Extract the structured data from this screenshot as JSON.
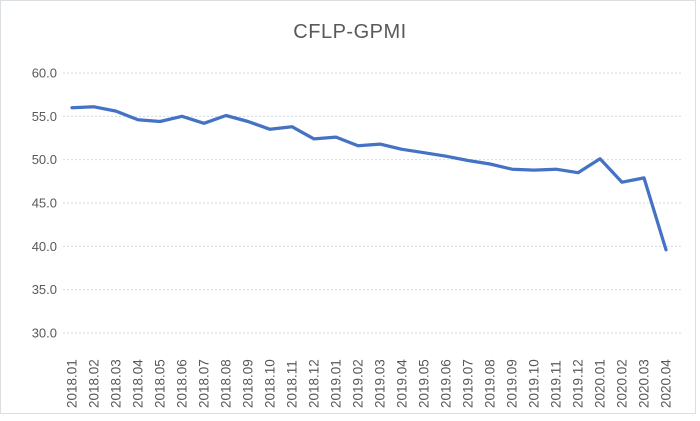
{
  "chart_data": {
    "type": "line",
    "title": "CFLP-GPMI",
    "xlabel": "",
    "ylabel": "",
    "categories": [
      "2018.01",
      "2018.02",
      "2018.03",
      "2018.04",
      "2018.05",
      "2018.06",
      "2018.07",
      "2018.08",
      "2018.09",
      "2018.10",
      "2018.11",
      "2018.12",
      "2019.01",
      "2019.02",
      "2019.03",
      "2019.04",
      "2019.05",
      "2019.06",
      "2019.07",
      "2019.08",
      "2019.09",
      "2019.10",
      "2019.11",
      "2019.12",
      "2020.01",
      "2020.02",
      "2020.03",
      "2020.04"
    ],
    "values": [
      56.0,
      56.1,
      55.6,
      54.6,
      54.4,
      55.0,
      54.2,
      55.1,
      54.4,
      53.5,
      53.8,
      52.4,
      52.6,
      51.6,
      51.8,
      51.2,
      50.8,
      50.4,
      49.9,
      49.5,
      48.9,
      48.8,
      48.9,
      48.5,
      50.1,
      47.4,
      47.9,
      39.6
    ],
    "ylim": [
      30.0,
      60.0
    ],
    "ytick_interval": 5.0,
    "ytick_labels": [
      "60.0",
      "55.0",
      "50.0",
      "45.0",
      "40.0",
      "35.0",
      "30.0"
    ],
    "grid": true,
    "legend_position": "none",
    "series_color": "#4472C4",
    "gridline_color": "#cfd9e6",
    "label_color": "#595959",
    "title_color": "#595959",
    "frame_border_color": "#d9dfe2",
    "background_color": "#ffffff"
  }
}
